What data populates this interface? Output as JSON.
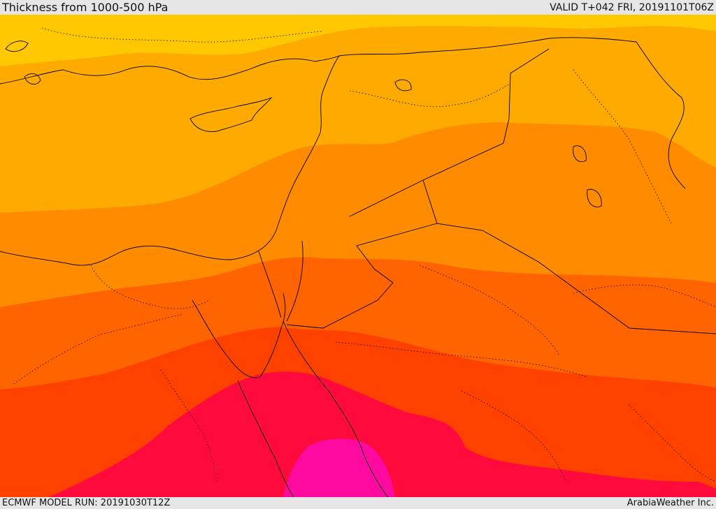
{
  "header": {
    "title": "Thickness from 1000-500 hPa",
    "valid": "VALID T+042 FRI, 20191101T06Z"
  },
  "footer": {
    "model_run": "ECMWF MODEL RUN: 20191030T12Z",
    "credit": "ArabiaWeather Inc."
  },
  "map": {
    "fill_colors": {
      "band_1": "#ffc800",
      "band_2": "#ffaa00",
      "band_3": "#ff8c00",
      "band_4": "#ff6400",
      "band_5": "#ff4100",
      "band_6": "#ff0a3c",
      "band_7": "#ff0aa0"
    },
    "border_color": "#000000"
  }
}
